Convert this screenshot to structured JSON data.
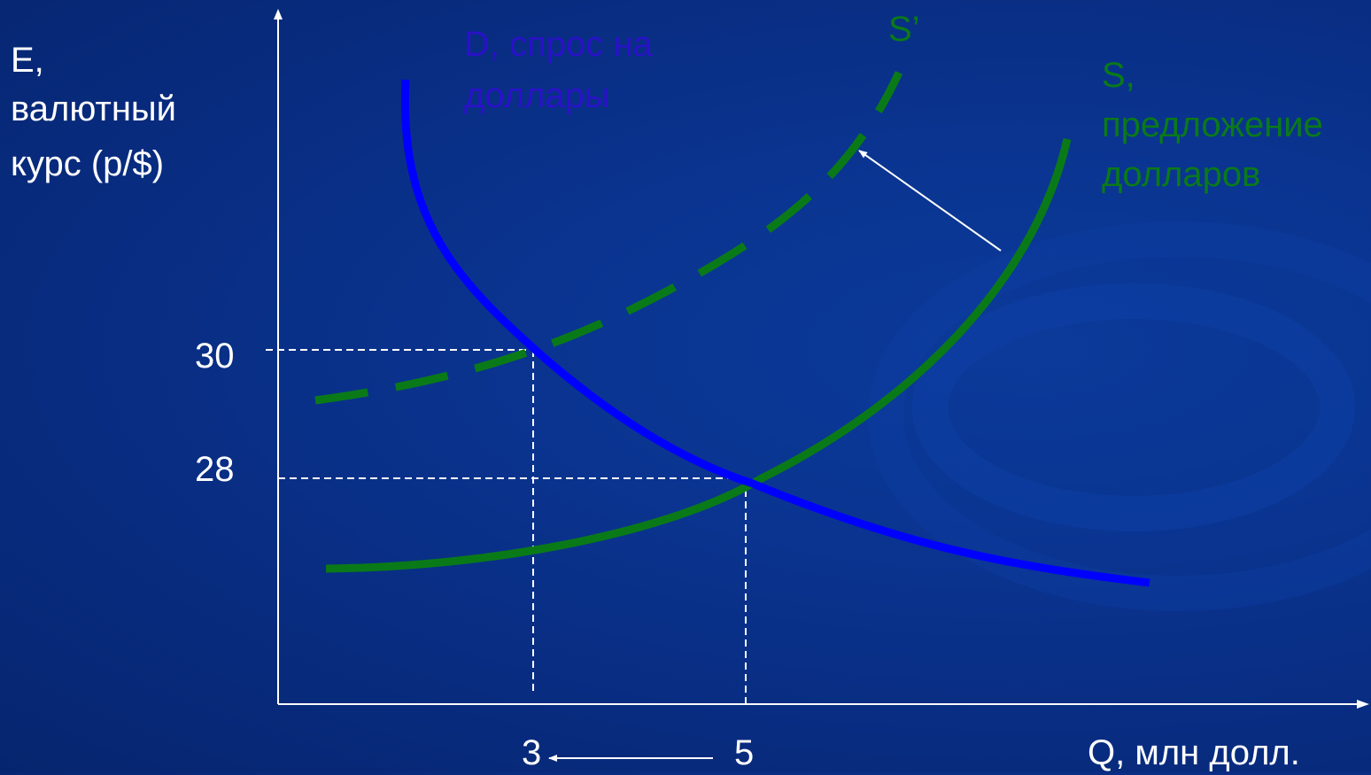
{
  "axis_labels": {
    "y_line1": "E,",
    "y_line2": "валютный",
    "y_line3": "курс (р/$)",
    "x": "Q, млн  долл."
  },
  "ticks": {
    "y_30": "30",
    "y_28": "28",
    "x_3": "3",
    "x_5": "5"
  },
  "curves": {
    "demand_line1": "D, спрос на",
    "demand_line2": "доллары",
    "supply_new": "S’",
    "supply_line1": "S,",
    "supply_line2": "предложение",
    "supply_line3": "долларов"
  },
  "colors": {
    "background": "#08307f",
    "demand": "#0000ff",
    "demand_label": "#2a11c8",
    "supply": "#0a7a18",
    "axes": "#ffffff"
  }
}
